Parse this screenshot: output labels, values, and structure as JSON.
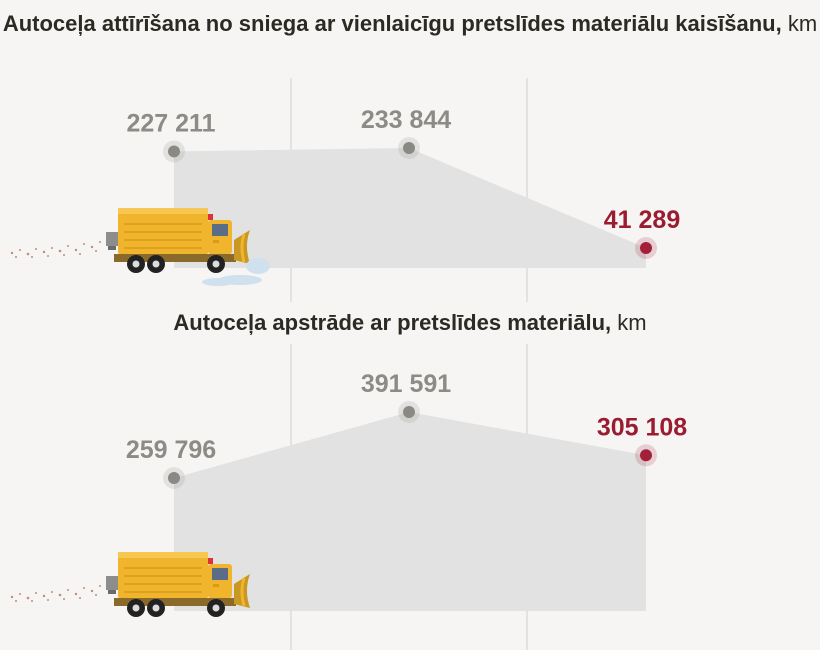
{
  "colors": {
    "background": "#f6f5f4",
    "area": "#e2e2e2",
    "point_default": "#8a8a84",
    "point_highlight": "#a3203a",
    "label_default": "#8c8c86",
    "label_highlight": "#9b1c31",
    "title": "#2b2b24",
    "gridline": "#cfcfcf"
  },
  "chart_data": [
    {
      "type": "area",
      "title": "Autoceļa attīrīšana no sniega ar vienlaicīgu pretslīdes materiālu kaisīšanu",
      "unit": "km",
      "grid": true,
      "values": [
        227211,
        233844,
        41289
      ],
      "labels": [
        "227 211",
        "233 844",
        "41 289"
      ],
      "highlight_index": 2,
      "ylim": [
        0,
        233844
      ]
    },
    {
      "type": "area",
      "title": "Autoceļa apstrāde ar pretslīdes materiālu",
      "unit": "km",
      "grid": true,
      "values": [
        259796,
        391591,
        305108
      ],
      "labels": [
        "259 796",
        "391 591",
        "305 108"
      ],
      "highlight_index": 2,
      "ylim": [
        0,
        391591
      ]
    }
  ],
  "icons": [
    "snowplow-truck-icon",
    "snowplow-truck-icon"
  ]
}
